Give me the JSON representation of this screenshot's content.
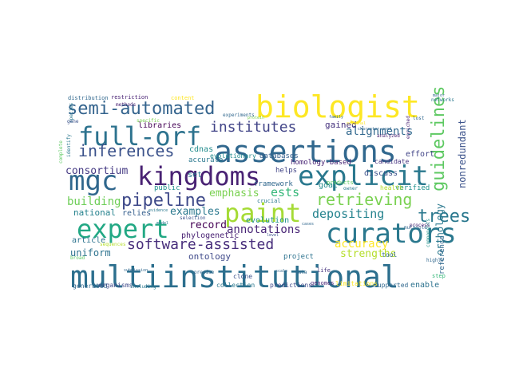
{
  "wordcloud": {
    "words": [
      {
        "text": "multiinstitutional",
        "color": "#2c6f8e"
      },
      {
        "text": "assertions",
        "color": "#31688e"
      },
      {
        "text": "biologist",
        "color": "#fde725"
      },
      {
        "text": "kingdoms",
        "color": "#482173"
      },
      {
        "text": "explicit",
        "color": "#2a788e"
      },
      {
        "text": "curators",
        "color": "#2a788e"
      },
      {
        "text": "full-orf",
        "color": "#2c728e"
      },
      {
        "text": "mgc",
        "color": "#30678d"
      },
      {
        "text": "expert",
        "color": "#22a884"
      },
      {
        "text": "paint",
        "color": "#a5db36"
      },
      {
        "text": "semi-automated",
        "color": "#33638d"
      },
      {
        "text": "guidelines",
        "color": "#5ec962"
      },
      {
        "text": "software-assisted",
        "color": "#472d7b"
      },
      {
        "text": "inferences",
        "color": "#3b528b"
      },
      {
        "text": "institutes",
        "color": "#414487"
      },
      {
        "text": "pipeline",
        "color": "#3e4989"
      },
      {
        "text": "retrieving",
        "color": "#7ad151"
      },
      {
        "text": "trees",
        "color": "#2a788e"
      },
      {
        "text": "depositing",
        "color": "#25838e"
      },
      {
        "text": "alignments",
        "color": "#31688e"
      },
      {
        "text": "annotations",
        "color": "#482576"
      },
      {
        "text": "consortium",
        "color": "#443983"
      },
      {
        "text": "building",
        "color": "#6ece58"
      },
      {
        "text": "emphasis",
        "color": "#7ad151"
      },
      {
        "text": "ests",
        "color": "#35b779"
      },
      {
        "text": "strengths",
        "color": "#b5de2b"
      },
      {
        "text": "nonredundant",
        "color": "#3b528b"
      },
      {
        "text": "orthology",
        "color": "#2a788e"
      },
      {
        "text": "examples",
        "color": "#2a788e"
      },
      {
        "text": "record",
        "color": "#440154"
      },
      {
        "text": "uniform",
        "color": "#2c728e"
      },
      {
        "text": "national",
        "color": "#26828e"
      },
      {
        "text": "accuracy",
        "color": "#fde725"
      },
      {
        "text": "ontology",
        "color": "#3e4989"
      },
      {
        "text": "gained",
        "color": "#46327e"
      },
      {
        "text": "evolution",
        "color": "#21918c"
      },
      {
        "text": "framework",
        "color": "#31688e"
      },
      {
        "text": "homology-based",
        "color": "#482475"
      },
      {
        "text": "reference",
        "color": "#31688e"
      },
      {
        "text": "phylogenetic",
        "color": "#482173"
      },
      {
        "text": "relies",
        "color": "#355f8d"
      },
      {
        "text": "helps",
        "color": "#414487"
      },
      {
        "text": "goal",
        "color": "#228c8d"
      },
      {
        "text": "verified",
        "color": "#21918c"
      },
      {
        "text": "enable",
        "color": "#2c728e"
      },
      {
        "text": "health",
        "color": "#b5de2b"
      },
      {
        "text": "article",
        "color": "#2c728e"
      },
      {
        "text": "accurate",
        "color": "#2a788e"
      },
      {
        "text": "public",
        "color": "#21918c"
      },
      {
        "text": "cdnas",
        "color": "#228c8d"
      },
      {
        "text": "effort",
        "color": "#414487"
      },
      {
        "text": "candidate",
        "color": "#46327e"
      },
      {
        "text": "discuss",
        "color": "#3b528b"
      },
      {
        "text": "databases",
        "color": "#355f8d"
      },
      {
        "text": "evolutionary",
        "color": "#238a8d"
      },
      {
        "text": "libraries",
        "color": "#440154"
      },
      {
        "text": "set",
        "color": "#2a788e"
      },
      {
        "text": "project",
        "color": "#2c728e"
      },
      {
        "text": "tool",
        "color": "#31688e"
      },
      {
        "text": "clone",
        "color": "#3b528b"
      },
      {
        "text": "collection",
        "color": "#2a788e"
      },
      {
        "text": "predictions",
        "color": "#3e4989"
      },
      {
        "text": "supported",
        "color": "#31688e"
      },
      {
        "text": "limitations",
        "color": "#fde725"
      },
      {
        "text": "genomes",
        "color": "#482576"
      },
      {
        "text": "generated",
        "color": "#31688e"
      },
      {
        "text": "organisms",
        "color": "#3e4989"
      },
      {
        "text": "distribution",
        "color": "#31688e"
      },
      {
        "text": "restriction",
        "color": "#482173"
      },
      {
        "text": "content",
        "color": "#fde725"
      },
      {
        "text": "experiments",
        "color": "#31688e"
      },
      {
        "text": "specific",
        "color": "#7ad151"
      },
      {
        "text": "methods",
        "color": "#482173"
      },
      {
        "text": "species",
        "color": "#2a788e"
      },
      {
        "text": "crucial",
        "color": "#2a788e"
      },
      {
        "text": "life",
        "color": "#46327e"
      },
      {
        "text": "data",
        "color": "#31688e"
      },
      {
        "text": "products",
        "color": "#5ec962"
      },
      {
        "text": "selection",
        "color": "#3b528b"
      },
      {
        "text": "precise",
        "color": "#31688e"
      },
      {
        "text": "including",
        "color": "#2a788e"
      },
      {
        "text": "step",
        "color": "#35b779"
      },
      {
        "text": "highly",
        "color": "#31688e"
      },
      {
        "text": "multiple",
        "color": "#31688e"
      },
      {
        "text": "enriched",
        "color": "#482173"
      },
      {
        "text": "networks",
        "color": "#2a788e"
      },
      {
        "text": "analyzed",
        "color": "#482173"
      },
      {
        "text": "lost",
        "color": "#31688e"
      },
      {
        "text": "gene",
        "color": "#3b528b"
      },
      {
        "text": "identify",
        "color": "#2a788e"
      },
      {
        "text": "complete",
        "color": "#5ec962"
      },
      {
        "text": "broad",
        "color": "#5ec962"
      },
      {
        "text": "sequences",
        "color": "#b5de2b"
      },
      {
        "text": "components",
        "color": "#21918c"
      },
      {
        "text": "process",
        "color": "#482173"
      },
      {
        "text": "owner",
        "color": "#2a788e"
      },
      {
        "text": "evidence",
        "color": "#2a788e"
      },
      {
        "text": "character-used",
        "color": "#31688e"
      },
      {
        "text": "original",
        "color": "#fde725"
      },
      {
        "text": "submission",
        "color": "#31688e"
      },
      {
        "text": "major",
        "color": "#31688e"
      },
      {
        "text": "protein",
        "color": "#7ad151"
      },
      {
        "text": "level",
        "color": "#3b528b"
      },
      {
        "text": "scale",
        "color": "#31688e"
      },
      {
        "text": "cases",
        "color": "#31688e"
      },
      {
        "text": "model",
        "color": "#2a788e"
      },
      {
        "text": "family",
        "color": "#31688e"
      }
    ]
  }
}
